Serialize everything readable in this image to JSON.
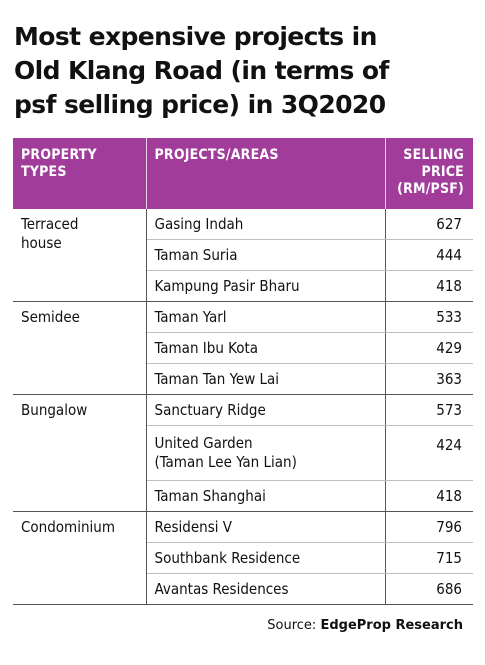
{
  "title_lines": [
    "Most expensive projects in",
    "Old Klang Road (in terms of",
    "psf selling price) in 3Q2020"
  ],
  "chart_data": {
    "type": "table",
    "columns": [
      "PROPERTY TYPES",
      "PROJECTS/AREAS",
      "SELLING PRICE (RM/PSF)"
    ],
    "header": {
      "col1": [
        "PROPERTY",
        "TYPES"
      ],
      "col2": [
        "PROJECTS/AREAS"
      ],
      "col3": [
        "SELLING",
        "PRICE",
        "(RM/PSF)"
      ]
    },
    "groups": [
      {
        "type_lines": [
          "Terraced",
          "house"
        ],
        "rows": [
          {
            "project_lines": [
              "Gasing Indah"
            ],
            "price": 627
          },
          {
            "project_lines": [
              "Taman Suria"
            ],
            "price": 444
          },
          {
            "project_lines": [
              "Kampung Pasir Bharu"
            ],
            "price": 418
          }
        ]
      },
      {
        "type_lines": [
          "Semidee"
        ],
        "rows": [
          {
            "project_lines": [
              "Taman Yarl"
            ],
            "price": 533
          },
          {
            "project_lines": [
              "Taman Ibu Kota"
            ],
            "price": 429
          },
          {
            "project_lines": [
              "Taman Tan Yew Lai"
            ],
            "price": 363
          }
        ]
      },
      {
        "type_lines": [
          "Bungalow"
        ],
        "rows": [
          {
            "project_lines": [
              "Sanctuary Ridge"
            ],
            "price": 573
          },
          {
            "project_lines": [
              "United Garden",
              "(Taman Lee Yan Lian)"
            ],
            "price": 424
          },
          {
            "project_lines": [
              "Taman Shanghai"
            ],
            "price": 418
          }
        ]
      },
      {
        "type_lines": [
          "Condominium"
        ],
        "rows": [
          {
            "project_lines": [
              "Residensi V"
            ],
            "price": 796
          },
          {
            "project_lines": [
              "Southbank Residence"
            ],
            "price": 715
          },
          {
            "project_lines": [
              "Avantas Residences"
            ],
            "price": 686
          }
        ]
      }
    ]
  },
  "source": {
    "prefix": "Source: ",
    "name": "EdgeProp Research"
  },
  "colors": {
    "header_bg": "#a13c9b",
    "header_text": "#ffffff",
    "text": "#111111"
  }
}
